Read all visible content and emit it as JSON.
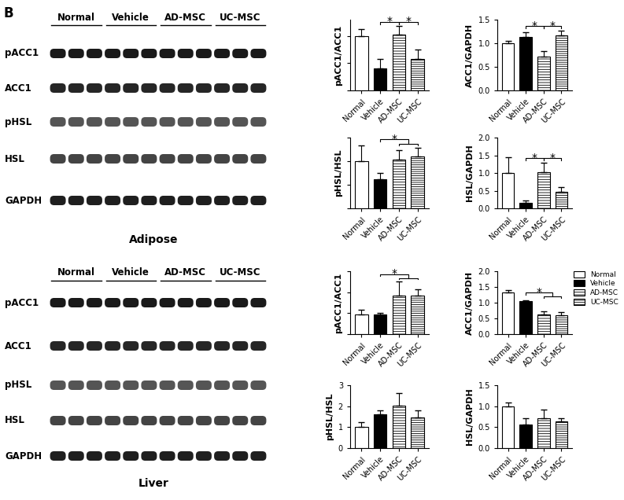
{
  "panel_label": "B",
  "blots": [
    {
      "title": "Adipose",
      "groups": [
        "Normal",
        "Vehicle",
        "AD-MSC",
        "UC-MSC"
      ],
      "rows": [
        "pACC1",
        "ACC1",
        "pHSL",
        "HSL",
        "GAPDH"
      ]
    },
    {
      "title": "Liver",
      "groups": [
        "Normal",
        "Vehicle",
        "AD-MSC",
        "UC-MSC"
      ],
      "rows": [
        "pACC1",
        "ACC1",
        "pHSL",
        "HSL",
        "GAPDH"
      ]
    }
  ],
  "chart_data": [
    {
      "type": "bar",
      "ylabel": "pACC1/ACC1",
      "categories": [
        "Normal",
        "Vehicle",
        "AD-MSC",
        "UC-MSC"
      ],
      "values": [
        1.0,
        0.4,
        1.03,
        0.58
      ],
      "errors": [
        0.12,
        0.18,
        0.15,
        0.17
      ],
      "colors": [
        "#ffffff",
        "#000000",
        "#ffffff",
        "#ffffff"
      ],
      "ylim": [
        0,
        1.3
      ],
      "yticks": [
        0,
        0.5,
        1.0
      ],
      "tick_labels": "x",
      "annotations": [
        {
          "text": "*",
          "from": 1,
          "to": 2
        },
        {
          "text": "*",
          "from": 2,
          "to": 3
        }
      ]
    },
    {
      "type": "bar",
      "ylabel": "ACC1/GAPDH",
      "categories": [
        "Normal",
        "Vehicle",
        "AD-MSC",
        "UC-MSC"
      ],
      "values": [
        1.0,
        1.13,
        0.72,
        1.17
      ],
      "errors": [
        0.05,
        0.1,
        0.12,
        0.1
      ],
      "colors": [
        "#ffffff",
        "#000000",
        "#ffffff",
        "#ffffff"
      ],
      "ylim": [
        0,
        1.5
      ],
      "yticks": [
        {
          "value": 0,
          "label": "0.0"
        },
        {
          "value": 0.5,
          "label": "0.5"
        },
        {
          "value": 1,
          "label": "1.0"
        },
        {
          "value": 1.5,
          "label": "1.5"
        }
      ],
      "annotations": [
        {
          "text": "*",
          "from": 1,
          "to": 2
        },
        {
          "text": "*",
          "from": 2,
          "to": 3
        }
      ]
    },
    {
      "type": "bar",
      "ylabel": "pHSL/HSL",
      "categories": [
        "Normal",
        "Vehicle",
        "AD-MSC",
        "UC-MSC"
      ],
      "values": [
        1.0,
        0.62,
        1.03,
        1.1
      ],
      "errors": [
        0.33,
        0.13,
        0.2,
        0.18
      ],
      "colors": [
        "#ffffff",
        "#000000",
        "#ffffff",
        "#ffffff"
      ],
      "ylim": [
        0,
        1.5
      ],
      "yticks": [
        0,
        0.5,
        1.0,
        1.5
      ],
      "tick_labels": "x",
      "annotations": [
        {
          "text": "*",
          "from": 1,
          "to": [
            2,
            3
          ]
        }
      ]
    },
    {
      "type": "bar",
      "ylabel": "HSL/GAPDH",
      "categories": [
        "Normal",
        "Vehicle",
        "AD-MSC",
        "UC-MSC"
      ],
      "values": [
        1.0,
        0.15,
        1.02,
        0.47
      ],
      "errors": [
        0.45,
        0.08,
        0.28,
        0.12
      ],
      "colors": [
        "#ffffff",
        "#000000",
        "#ffffff",
        "#ffffff"
      ],
      "ylim": [
        0,
        2.0
      ],
      "yticks": [
        {
          "value": 0,
          "label": "0.0"
        },
        {
          "value": 0.5,
          "label": "0.5"
        },
        {
          "value": 1,
          "label": "1.0"
        },
        {
          "value": 1.5,
          "label": "1.5"
        },
        {
          "value": 2,
          "label": "2.0"
        }
      ],
      "annotations": [
        {
          "text": "*",
          "from": 1,
          "to": 2
        },
        {
          "text": "*",
          "from": 2,
          "to": 3
        }
      ]
    },
    {
      "type": "bar",
      "ylabel": "pACC1/ACC1",
      "categories": [
        "Normal",
        "Vehicle",
        "AD-MSC",
        "UC-MSC"
      ],
      "values": [
        0.95,
        0.92,
        1.85,
        1.82
      ],
      "errors": [
        0.2,
        0.1,
        0.65,
        0.3
      ],
      "colors": [
        "#ffffff",
        "#000000",
        "#ffffff",
        "#ffffff"
      ],
      "ylim": [
        0,
        3
      ],
      "yticks": [
        0,
        1,
        2,
        3
      ],
      "tick_labels": "x",
      "annotations": [
        {
          "text": "*",
          "from": 1,
          "to": [
            2,
            3
          ]
        }
      ]
    },
    {
      "type": "bar",
      "ylabel": "ACC1/GAPDH",
      "categories": [
        "Normal",
        "Vehicle",
        "AD-MSC",
        "UC-MSC"
      ],
      "values": [
        1.33,
        1.05,
        0.63,
        0.6
      ],
      "errors": [
        0.08,
        0.03,
        0.1,
        0.1
      ],
      "colors": [
        "#ffffff",
        "#000000",
        "#ffffff",
        "#ffffff"
      ],
      "ylim": [
        0,
        2.0
      ],
      "yticks": [
        {
          "value": 0,
          "label": "0.0"
        },
        {
          "value": 0.5,
          "label": "0.5"
        },
        {
          "value": 1,
          "label": "1.0"
        },
        {
          "value": 1.5,
          "label": "1.5"
        },
        {
          "value": 2,
          "label": "2.0"
        }
      ],
      "legend": "upper right",
      "annotations": [
        {
          "text": "*",
          "from": 1,
          "to": [
            2,
            3
          ]
        }
      ]
    },
    {
      "type": "bar",
      "ylabel": "pHSL/HSL",
      "categories": [
        "Normal",
        "Vehicle",
        "AD-MSC",
        "UC-MSC"
      ],
      "values": [
        1.02,
        1.6,
        2.02,
        1.45
      ],
      "errors": [
        0.2,
        0.2,
        0.62,
        0.35
      ],
      "colors": [
        "#ffffff",
        "#000000",
        "#ffffff",
        "#ffffff"
      ],
      "ylim": [
        0,
        3
      ],
      "yticks": [
        0,
        1,
        2,
        3
      ]
    },
    {
      "type": "bar",
      "ylabel": "HSL/GAPDH",
      "categories": [
        "Normal",
        "Vehicle",
        "AD-MSC",
        "UC-MSC"
      ],
      "values": [
        1.0,
        0.57,
        0.72,
        0.63
      ],
      "errors": [
        0.08,
        0.15,
        0.2,
        0.09
      ],
      "colors": [
        "#ffffff",
        "#000000",
        "#ffffff",
        "#ffffff"
      ],
      "ylim": [
        0,
        1.5
      ],
      "yticks": [
        {
          "value": 0,
          "label": "0.0"
        },
        {
          "value": 0.5,
          "label": "0.5"
        },
        {
          "value": 1,
          "label": "1.0"
        },
        {
          "value": 1.5,
          "label": "1.5"
        }
      ]
    }
  ]
}
